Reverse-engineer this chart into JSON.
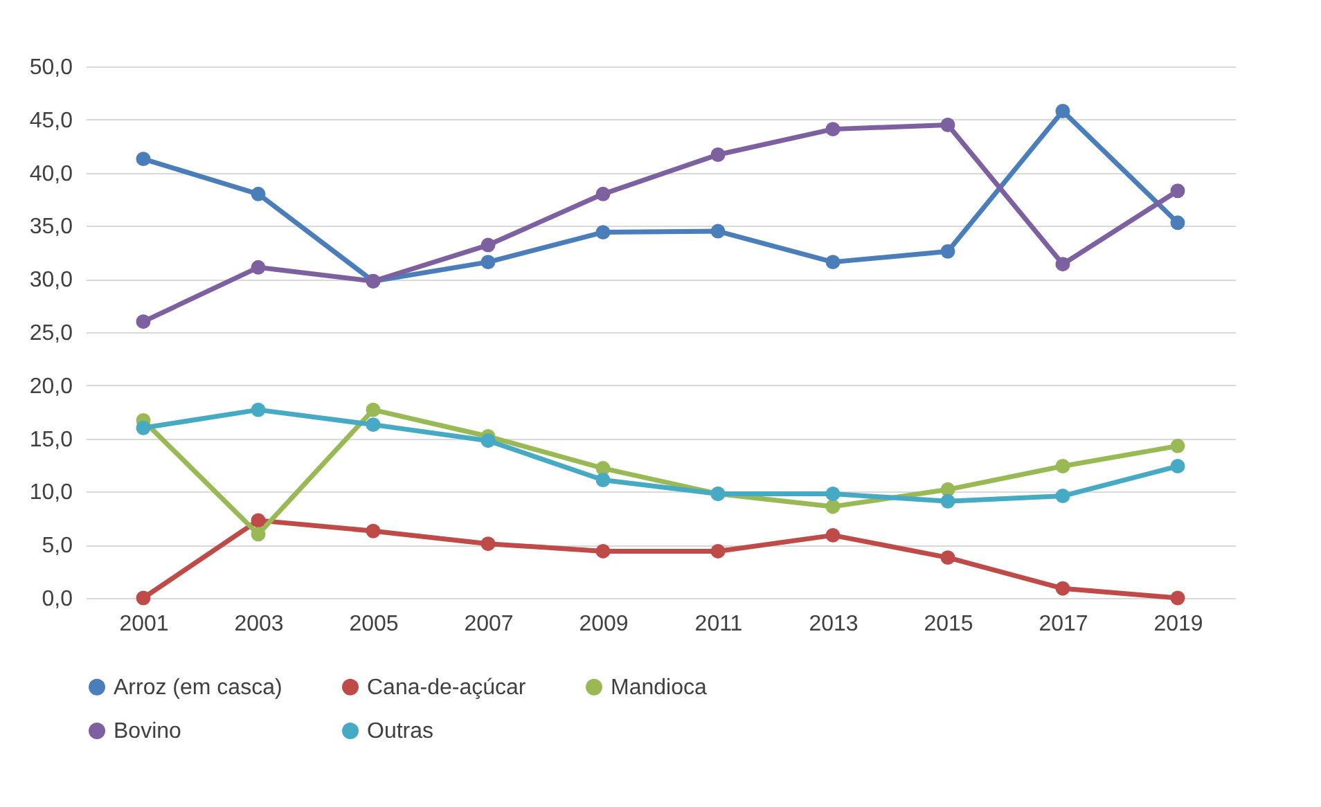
{
  "chart_data": {
    "type": "line",
    "categories": [
      "2001",
      "2003",
      "2005",
      "2007",
      "2009",
      "2011",
      "2013",
      "2015",
      "2017",
      "2019"
    ],
    "series": [
      {
        "name": "Arroz (em casca)",
        "color": "#4a7ebb",
        "values": [
          41.3,
          38.0,
          29.8,
          31.6,
          34.4,
          34.5,
          31.6,
          32.6,
          45.8,
          35.3
        ]
      },
      {
        "name": "Cana-de-açúcar",
        "color": "#be4b48",
        "values": [
          0,
          7.3,
          6.3,
          5.1,
          4.4,
          4.4,
          5.9,
          3.8,
          0.9,
          0
        ]
      },
      {
        "name": "Mandioca",
        "color": "#98b954",
        "values": [
          16.7,
          6.0,
          17.7,
          15.2,
          12.2,
          9.8,
          8.6,
          10.2,
          12.4,
          14.3
        ]
      },
      {
        "name": "Bovino",
        "color": "#7d60a0",
        "values": [
          26.0,
          31.1,
          29.8,
          33.2,
          38.0,
          41.7,
          44.1,
          44.5,
          31.4,
          38.3
        ]
      },
      {
        "name": "Outras",
        "color": "#46aac5",
        "values": [
          16.0,
          17.7,
          16.3,
          14.8,
          11.1,
          9.8,
          9.8,
          9.1,
          9.6,
          12.4
        ]
      }
    ],
    "ylim": [
      0,
      50
    ],
    "yticks": [
      {
        "value": 0,
        "label": "0,0"
      },
      {
        "value": 5,
        "label": "5,0"
      },
      {
        "value": 10,
        "label": "10,0"
      },
      {
        "value": 15,
        "label": "15,0"
      },
      {
        "value": 20,
        "label": "20,0"
      },
      {
        "value": 25,
        "label": "25,0"
      },
      {
        "value": 30,
        "label": "30,0"
      },
      {
        "value": 35,
        "label": "35,0"
      },
      {
        "value": 40,
        "label": "40,0"
      },
      {
        "value": 45,
        "label": "45,0"
      },
      {
        "value": 50,
        "label": "50,0"
      }
    ],
    "grid": "y",
    "legend": "bottom",
    "marker": "circle",
    "line_style": "solid"
  }
}
